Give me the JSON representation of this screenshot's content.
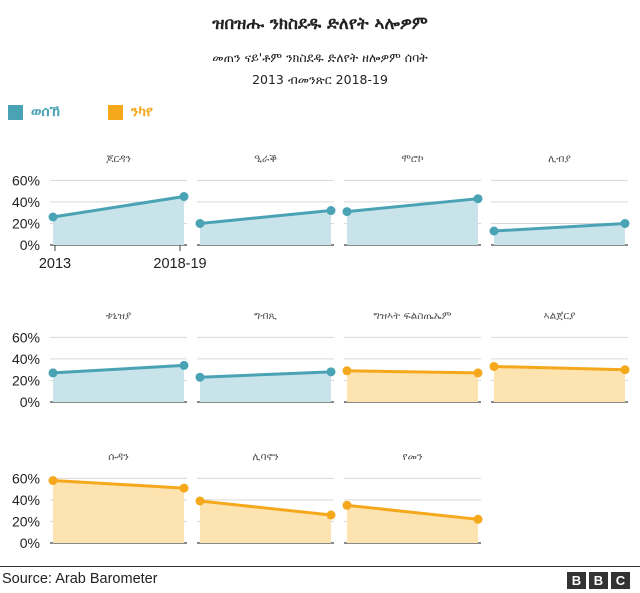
{
  "header": {
    "title": "ዝበዝሑ ንክስደዱ ድለየት ኣሎዎም",
    "subtitle": "መጠን ናይ'ቶም ንክስደዱ ድለየት ዘሎዎም ሰባት",
    "period": "2013 ብመንጽር 2018-19"
  },
  "legend": [
    {
      "label": "ወሰኸ",
      "color": "#4aa3b5"
    },
    {
      "label": "ንካየ",
      "color": "#f5a81c"
    }
  ],
  "colors": {
    "increase_line": "#4aa3b5",
    "increase_fill": "#c9e3ea",
    "decrease_line": "#f5a81c",
    "decrease_fill": "#fde3b0",
    "grid": "#d9d9d9",
    "axis": "#444444"
  },
  "chart_data": {
    "type": "area",
    "x": [
      "2013",
      "2018-19"
    ],
    "y_ticks": [
      "60%",
      "40%",
      "20%",
      "0%"
    ],
    "ylim": [
      0,
      65
    ],
    "grid": true,
    "panels": [
      {
        "name": "ጆርዳን",
        "trend": "increase",
        "values": [
          26,
          45
        ]
      },
      {
        "name": "ዒራቕ",
        "trend": "increase",
        "values": [
          20,
          32
        ]
      },
      {
        "name": "ሞሮኮ",
        "trend": "increase",
        "values": [
          31,
          43
        ]
      },
      {
        "name": "ሊብያ",
        "trend": "increase",
        "values": [
          13,
          20
        ]
      },
      {
        "name": "ቱኒዝያ",
        "trend": "increase",
        "values": [
          27,
          34
        ]
      },
      {
        "name": "ግብጺ",
        "trend": "increase",
        "values": [
          23,
          28
        ]
      },
      {
        "name": "ግዝኣት ፍልስጤኤም",
        "trend": "decrease",
        "values": [
          29,
          27
        ]
      },
      {
        "name": "ኣልጀርያ",
        "trend": "decrease",
        "values": [
          33,
          30
        ]
      },
      {
        "name": "ሱዳን",
        "trend": "decrease",
        "values": [
          58,
          51
        ]
      },
      {
        "name": "ሊባኖን",
        "trend": "decrease",
        "values": [
          39,
          26
        ]
      },
      {
        "name": "የመን",
        "trend": "decrease",
        "values": [
          35,
          22
        ]
      }
    ]
  },
  "footer": {
    "source": "Source: Arab Barometer",
    "logo": [
      "B",
      "B",
      "C"
    ]
  }
}
